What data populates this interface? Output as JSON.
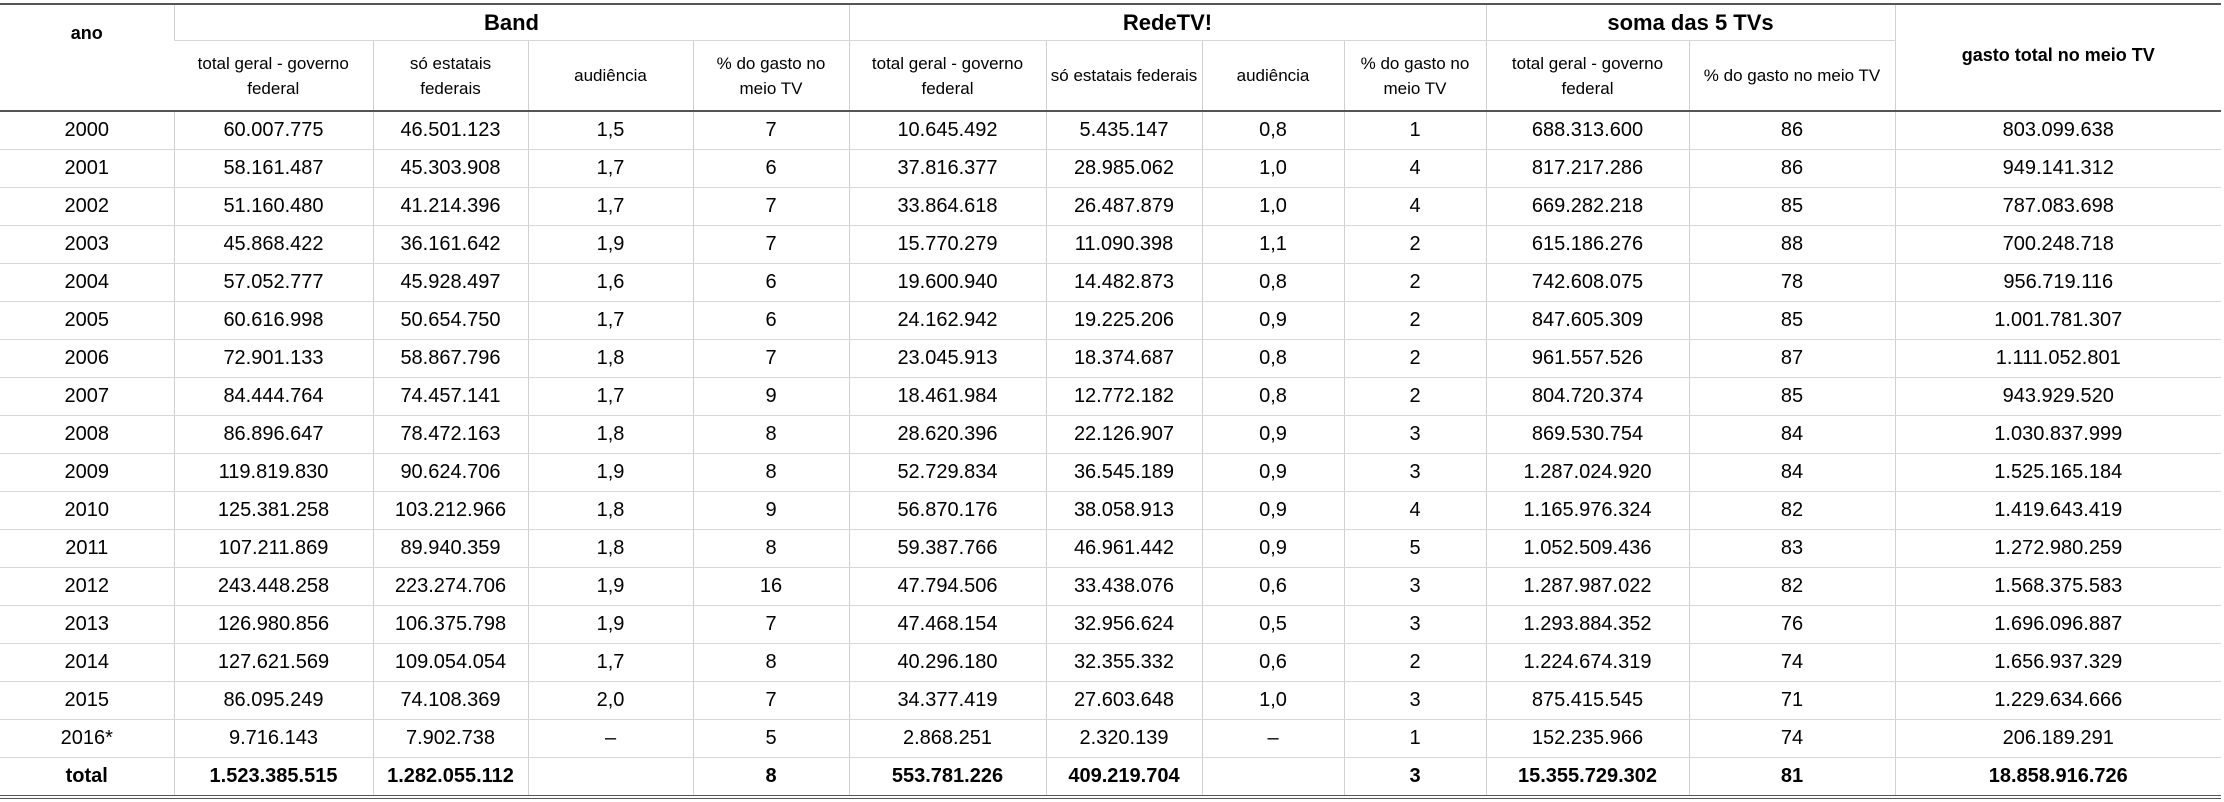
{
  "table": {
    "year_header": "ano",
    "groups": [
      {
        "label": "Band",
        "columns": [
          "total geral - governo federal",
          "só estatais federais",
          "audiência",
          "% do gasto no meio TV"
        ]
      },
      {
        "label": "RedeTV!",
        "columns": [
          "total geral - governo federal",
          "só estatais federais",
          "audiência",
          "% do gasto no meio TV"
        ]
      },
      {
        "label": "soma das 5 TVs",
        "columns": [
          "total geral - governo federal",
          "% do gasto no meio TV"
        ]
      }
    ],
    "last_header": "gasto total no meio TV",
    "rows": [
      [
        "2000",
        "60.007.775",
        "46.501.123",
        "1,5",
        "7",
        "10.645.492",
        "5.435.147",
        "0,8",
        "1",
        "688.313.600",
        "86",
        "803.099.638"
      ],
      [
        "2001",
        "58.161.487",
        "45.303.908",
        "1,7",
        "6",
        "37.816.377",
        "28.985.062",
        "1,0",
        "4",
        "817.217.286",
        "86",
        "949.141.312"
      ],
      [
        "2002",
        "51.160.480",
        "41.214.396",
        "1,7",
        "7",
        "33.864.618",
        "26.487.879",
        "1,0",
        "4",
        "669.282.218",
        "85",
        "787.083.698"
      ],
      [
        "2003",
        "45.868.422",
        "36.161.642",
        "1,9",
        "7",
        "15.770.279",
        "11.090.398",
        "1,1",
        "2",
        "615.186.276",
        "88",
        "700.248.718"
      ],
      [
        "2004",
        "57.052.777",
        "45.928.497",
        "1,6",
        "6",
        "19.600.940",
        "14.482.873",
        "0,8",
        "2",
        "742.608.075",
        "78",
        "956.719.116"
      ],
      [
        "2005",
        "60.616.998",
        "50.654.750",
        "1,7",
        "6",
        "24.162.942",
        "19.225.206",
        "0,9",
        "2",
        "847.605.309",
        "85",
        "1.001.781.307"
      ],
      [
        "2006",
        "72.901.133",
        "58.867.796",
        "1,8",
        "7",
        "23.045.913",
        "18.374.687",
        "0,8",
        "2",
        "961.557.526",
        "87",
        "1.111.052.801"
      ],
      [
        "2007",
        "84.444.764",
        "74.457.141",
        "1,7",
        "9",
        "18.461.984",
        "12.772.182",
        "0,8",
        "2",
        "804.720.374",
        "85",
        "943.929.520"
      ],
      [
        "2008",
        "86.896.647",
        "78.472.163",
        "1,8",
        "8",
        "28.620.396",
        "22.126.907",
        "0,9",
        "3",
        "869.530.754",
        "84",
        "1.030.837.999"
      ],
      [
        "2009",
        "119.819.830",
        "90.624.706",
        "1,9",
        "8",
        "52.729.834",
        "36.545.189",
        "0,9",
        "3",
        "1.287.024.920",
        "84",
        "1.525.165.184"
      ],
      [
        "2010",
        "125.381.258",
        "103.212.966",
        "1,8",
        "9",
        "56.870.176",
        "38.058.913",
        "0,9",
        "4",
        "1.165.976.324",
        "82",
        "1.419.643.419"
      ],
      [
        "2011",
        "107.211.869",
        "89.940.359",
        "1,8",
        "8",
        "59.387.766",
        "46.961.442",
        "0,9",
        "5",
        "1.052.509.436",
        "83",
        "1.272.980.259"
      ],
      [
        "2012",
        "243.448.258",
        "223.274.706",
        "1,9",
        "16",
        "47.794.506",
        "33.438.076",
        "0,6",
        "3",
        "1.287.987.022",
        "82",
        "1.568.375.583"
      ],
      [
        "2013",
        "126.980.856",
        "106.375.798",
        "1,9",
        "7",
        "47.468.154",
        "32.956.624",
        "0,5",
        "3",
        "1.293.884.352",
        "76",
        "1.696.096.887"
      ],
      [
        "2014",
        "127.621.569",
        "109.054.054",
        "1,7",
        "8",
        "40.296.180",
        "32.355.332",
        "0,6",
        "2",
        "1.224.674.319",
        "74",
        "1.656.937.329"
      ],
      [
        "2015",
        "86.095.249",
        "74.108.369",
        "2,0",
        "7",
        "34.377.419",
        "27.603.648",
        "1,0",
        "3",
        "875.415.545",
        "71",
        "1.229.634.666"
      ],
      [
        "2016*",
        "9.716.143",
        "7.902.738",
        "–",
        "5",
        "2.868.251",
        "2.320.139",
        "–",
        "1",
        "152.235.966",
        "74",
        "206.189.291"
      ]
    ],
    "total_row": [
      "total",
      "1.523.385.515",
      "1.282.055.112",
      null,
      "8",
      "553.781.226",
      "409.219.704",
      null,
      "3",
      "15.355.729.302",
      "81",
      "18.858.916.726"
    ]
  }
}
